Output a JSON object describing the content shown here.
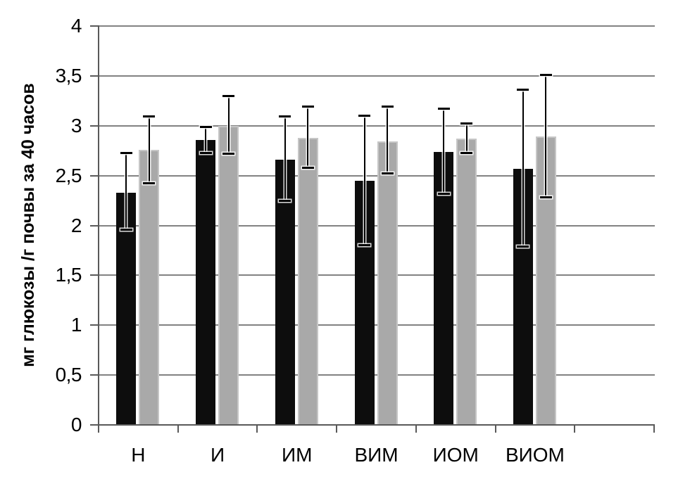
{
  "chart_data": {
    "type": "bar",
    "title": "",
    "xlabel": "",
    "ylabel": "мг глюкозы /г почвы за 40 часов",
    "categories": [
      "Н",
      "И",
      "ИМ",
      "ВИМ",
      "ИОМ",
      "ВИОМ"
    ],
    "series": [
      {
        "name": "black-series",
        "color": "#0d0d0d",
        "values": [
          2.33,
          2.86,
          2.66,
          2.45,
          2.74,
          2.57
        ],
        "error_low": [
          1.96,
          2.73,
          2.25,
          1.8,
          2.32,
          1.79
        ],
        "error_high": [
          2.73,
          2.99,
          3.09,
          3.1,
          3.17,
          3.36
        ]
      },
      {
        "name": "gray-series",
        "color": "#a9a9a9",
        "values": [
          2.76,
          3.0,
          2.88,
          2.84,
          2.87,
          2.89
        ],
        "error_low": [
          2.42,
          2.72,
          2.58,
          2.52,
          2.73,
          2.28
        ],
        "error_high": [
          3.09,
          3.3,
          3.19,
          3.19,
          3.02,
          3.51
        ]
      }
    ],
    "ylim": [
      0,
      4
    ],
    "ytick_step": 0.5,
    "ytick_labels": [
      "0",
      "0,5",
      "1",
      "1,5",
      "2",
      "2,5",
      "3",
      "3,5",
      "4"
    ],
    "grid": true,
    "legend": "none",
    "x_slots": 7,
    "error_bars": true,
    "decimal_separator": ","
  },
  "colors": {
    "gridline": "#828282",
    "axis": "#595959",
    "bar_black": "#0d0d0d",
    "bar_gray": "#a9a9a9",
    "bar_gray_edge": "#c6c6c6",
    "error_bar": "#000000",
    "background": "#ffffff",
    "text": "#000000"
  }
}
